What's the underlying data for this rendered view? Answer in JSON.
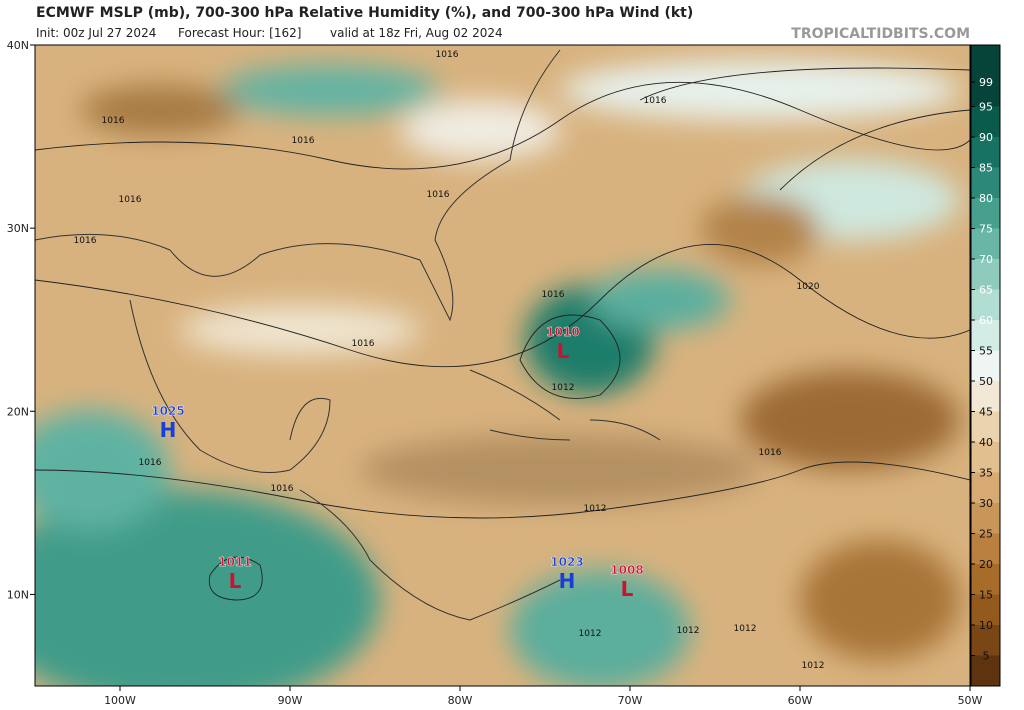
{
  "header": {
    "title": "ECMWF MSLP (mb), 700-300 hPa Relative Humidity (%), and 700-300 hPa Wind (kt)",
    "init": "Init: 00z Jul 27 2024",
    "forecast_hour": "Forecast Hour: [162]",
    "valid": "valid at 18z Fri, Aug 02 2024",
    "site": "TROPICALTIDBITS.COM"
  },
  "map": {
    "lonlim": [
      -105,
      -50
    ],
    "latlim": [
      5,
      40
    ],
    "lon_ticks": [
      {
        "value": -100,
        "label": "100W"
      },
      {
        "value": -90,
        "label": "90W"
      },
      {
        "value": -80,
        "label": "80W"
      },
      {
        "value": -70,
        "label": "70W"
      },
      {
        "value": -60,
        "label": "60W"
      },
      {
        "value": -50,
        "label": "50W"
      }
    ],
    "lat_ticks": [
      {
        "value": 40,
        "label": "40N"
      },
      {
        "value": 30,
        "label": "30N"
      },
      {
        "value": 20,
        "label": "20N"
      },
      {
        "value": 10,
        "label": "10N"
      }
    ]
  },
  "pressure_centers": [
    {
      "letter": "H",
      "value": 1025
    },
    {
      "letter": "L",
      "value": 1011
    },
    {
      "letter": "H",
      "value": 1023
    },
    {
      "letter": "L",
      "value": 1008
    },
    {
      "letter": "L",
      "value": 1010
    }
  ],
  "isobar_labels": [
    1016,
    1016,
    1016,
    1016,
    1016,
    1016,
    1016,
    1016,
    1016,
    1016,
    1016,
    1016,
    1012,
    1012,
    1012,
    1012,
    1012,
    1012,
    1020
  ],
  "colorbar": {
    "lim": [
      0,
      100
    ],
    "ticks": [
      5,
      10,
      15,
      20,
      25,
      30,
      35,
      40,
      45,
      50,
      55,
      60,
      65,
      70,
      75,
      80,
      85,
      90,
      95,
      99
    ],
    "colors": [
      "#5e3410",
      "#7a4616",
      "#93591d",
      "#a86c2a",
      "#ba8040",
      "#c99558",
      "#d6aa72",
      "#e1bf8e",
      "#ebd4ad",
      "#f3e8d6",
      "#eef5f2",
      "#d3ece6",
      "#b2ddd3",
      "#8ecbbd",
      "#69b6a6",
      "#47a08e",
      "#2c8977",
      "#177262",
      "#0b5b4d",
      "#06443a"
    ]
  }
}
